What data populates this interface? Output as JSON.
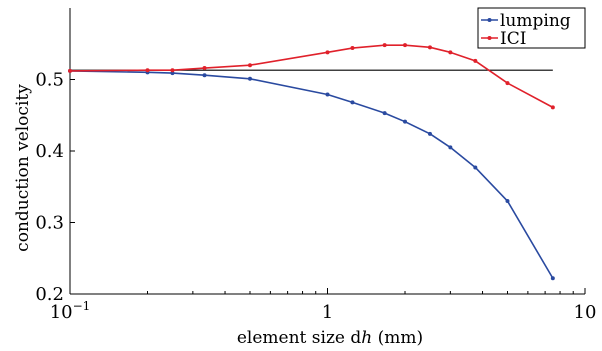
{
  "chart_data": {
    "type": "line",
    "title": "",
    "xlabel_prefix": "element size d",
    "xlabel_var": "h",
    "xlabel_suffix": " (mm)",
    "ylabel": "conduction velocity",
    "xscale": "log",
    "xlim": [
      0.1,
      10
    ],
    "ylim": [
      0.2,
      0.6
    ],
    "grid": false,
    "legend_position": "top-right",
    "x_ticks": [
      {
        "value": 0.1,
        "base": "10",
        "exp": "−1"
      },
      {
        "value": 1,
        "base": "1",
        "exp": ""
      },
      {
        "value": 10,
        "base": "10",
        "exp": ""
      }
    ],
    "y_ticks": [
      {
        "value": 0.2,
        "label": "0.2"
      },
      {
        "value": 0.3,
        "label": "0.3"
      },
      {
        "value": 0.4,
        "label": "0.4"
      },
      {
        "value": 0.5,
        "label": "0.5"
      }
    ],
    "reference_line": {
      "y": 0.513,
      "x_start": 0.1,
      "x_end": 7.5,
      "color": "#000000"
    },
    "series": [
      {
        "name": "lumping",
        "color": "#2a4aa0",
        "x": [
          0.1,
          0.2,
          0.25,
          0.333,
          0.5,
          1,
          1.25,
          1.667,
          2,
          2.5,
          3,
          3.75,
          5,
          7.5
        ],
        "y": [
          0.512,
          0.51,
          0.509,
          0.506,
          0.501,
          0.479,
          0.468,
          0.453,
          0.441,
          0.424,
          0.405,
          0.377,
          0.33,
          0.222
        ]
      },
      {
        "name": "ICI",
        "color": "#e0212b",
        "x": [
          0.1,
          0.2,
          0.25,
          0.333,
          0.5,
          1,
          1.25,
          1.667,
          2,
          2.5,
          3,
          3.75,
          5,
          7.5
        ],
        "y": [
          0.512,
          0.513,
          0.513,
          0.516,
          0.52,
          0.538,
          0.544,
          0.548,
          0.548,
          0.545,
          0.538,
          0.526,
          0.495,
          0.461
        ]
      }
    ]
  }
}
